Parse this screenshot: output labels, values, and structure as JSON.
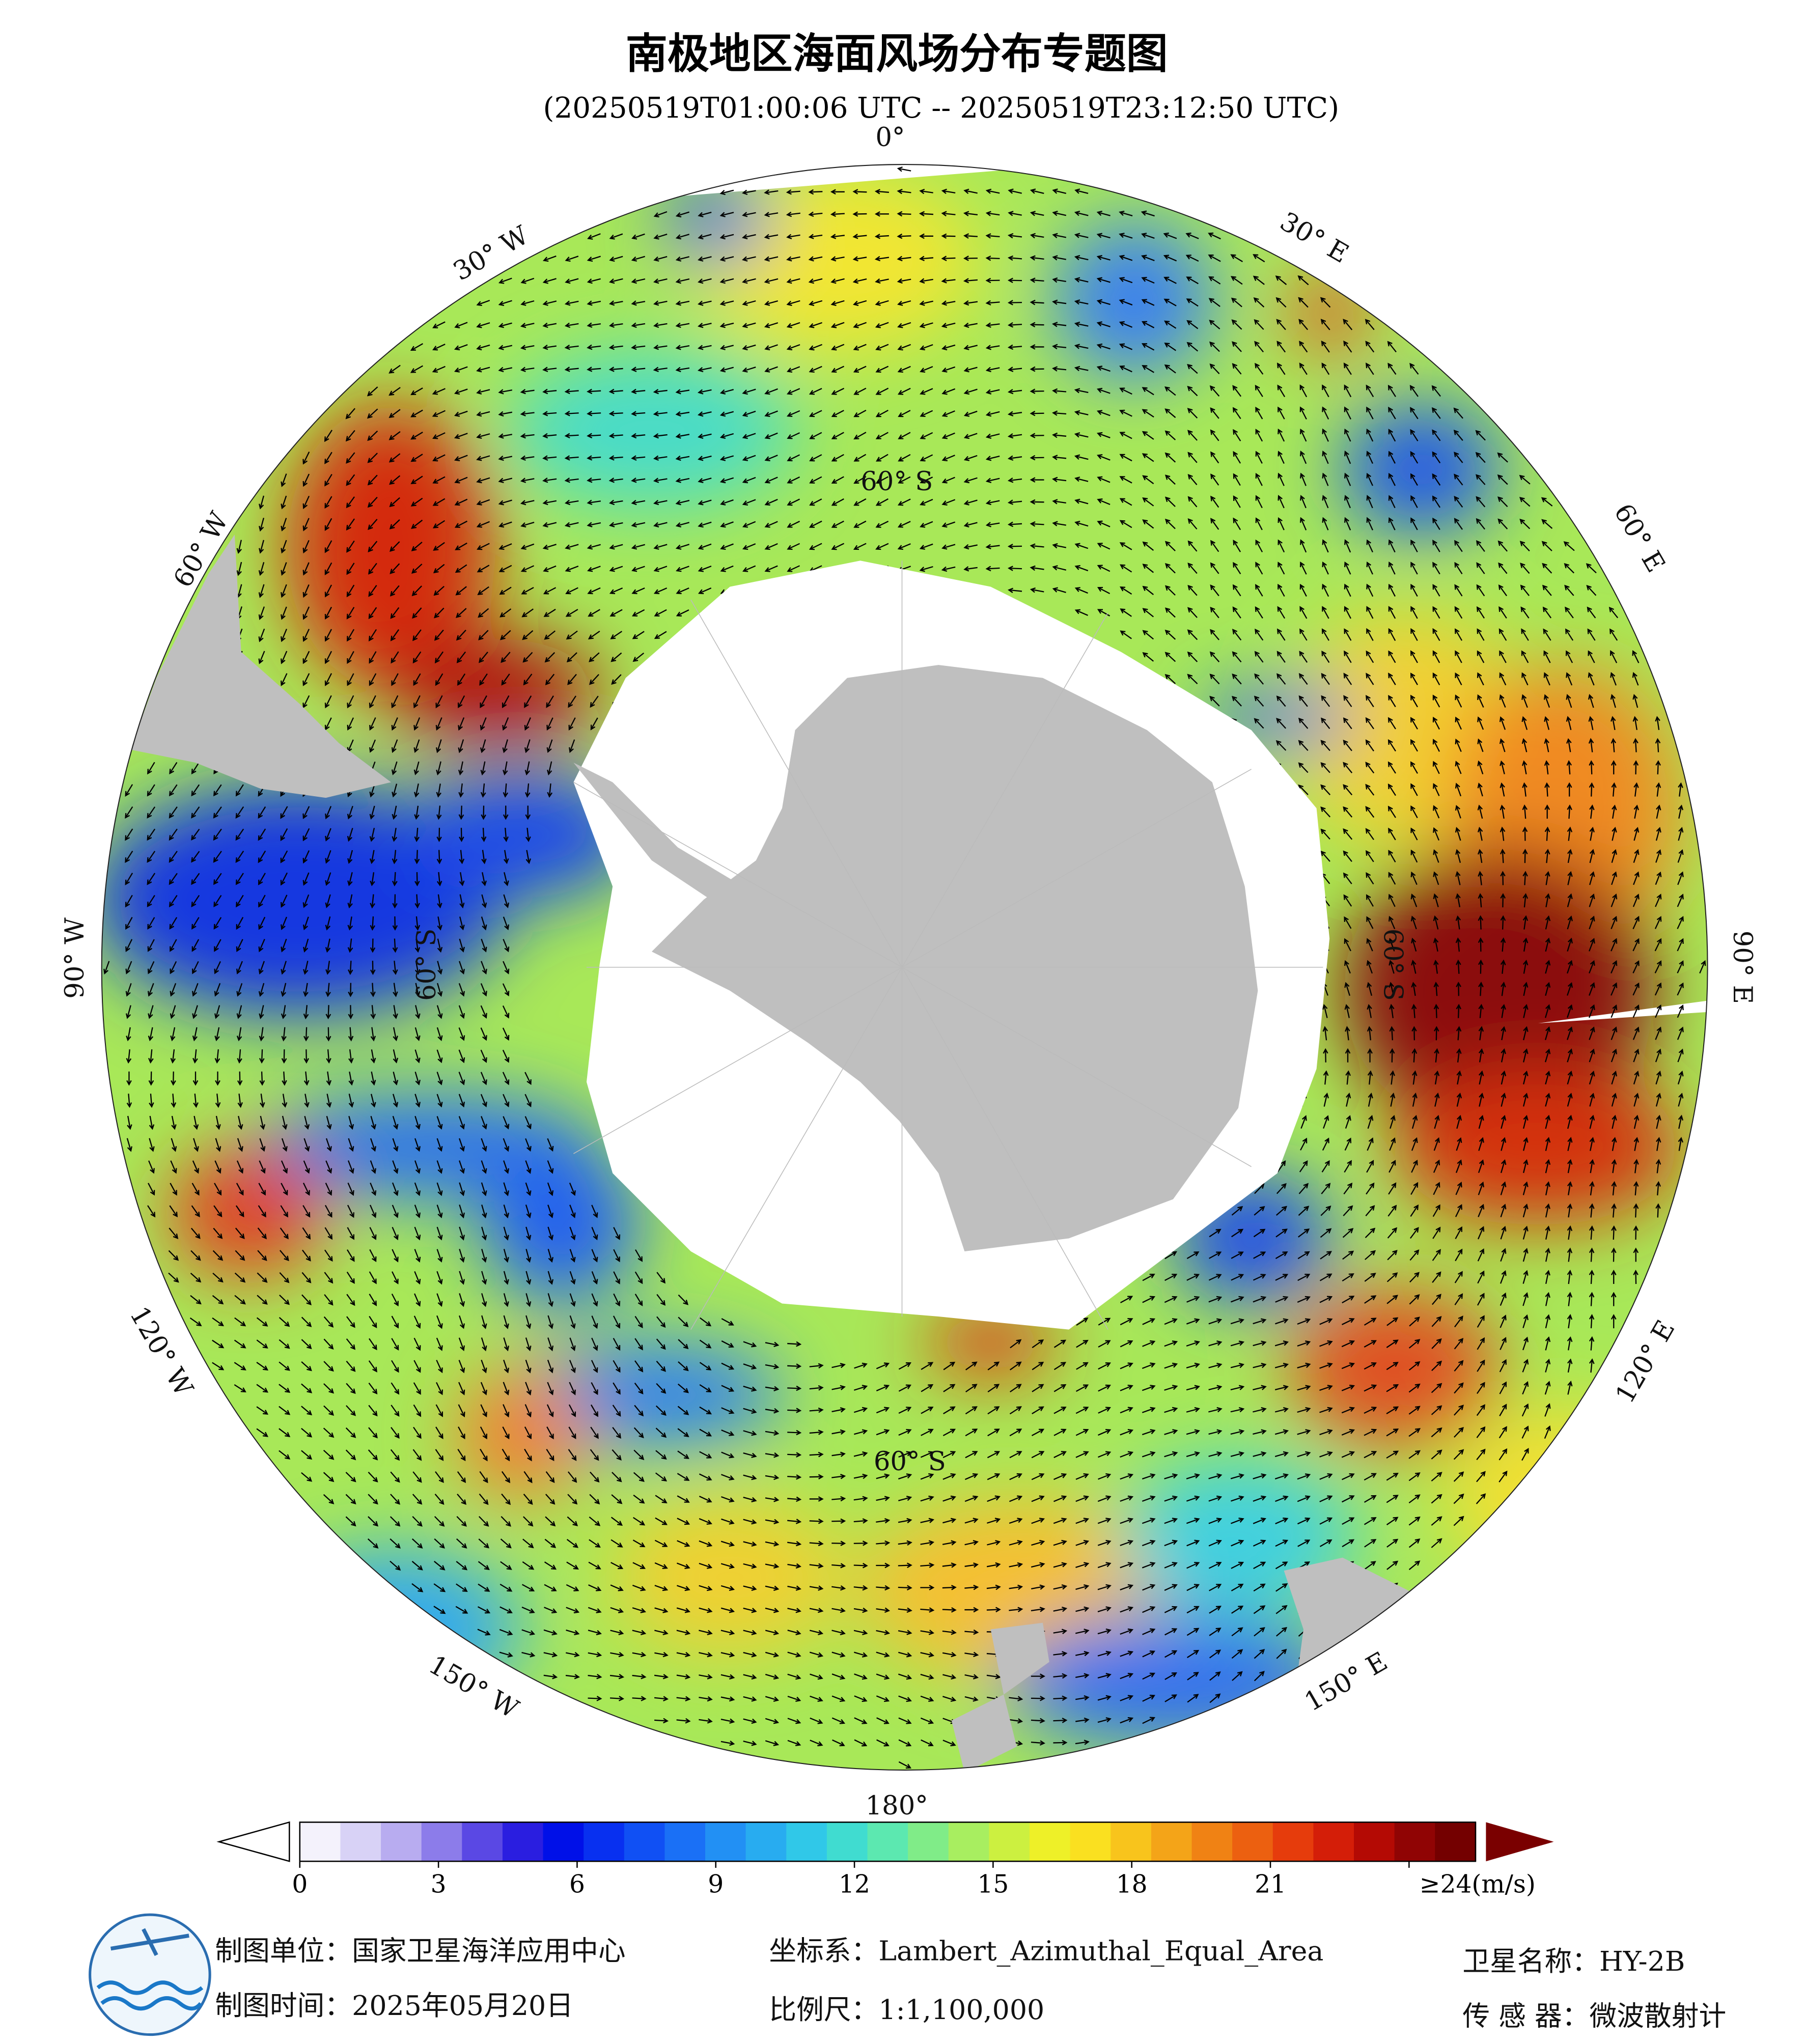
{
  "title": "南极地区海面风场分布专题图",
  "subtitle": "(20250519T01:00:06 UTC -- 20250519T23:12:50 UTC)",
  "map": {
    "longitude_labels": [
      "0°",
      "30° E",
      "60° E",
      "90° E",
      "120° E",
      "150° E",
      "180°",
      "150° W",
      "120° W",
      "90° W",
      "60° W",
      "30° W"
    ],
    "latitude_labels": [
      "60° S",
      "60° S",
      "60° S",
      "60° S"
    ]
  },
  "colorbar": {
    "range": [
      0,
      24
    ],
    "ticks": [
      0,
      3,
      6,
      9,
      12,
      15,
      18,
      21,
      {
        "value": 24,
        "label": "≥24(m/s)"
      }
    ],
    "colors": [
      "#f4f2fc",
      "#d8d2f6",
      "#b8acf0",
      "#8c7cea",
      "#5a48e4",
      "#2a1ee0",
      "#0010e8",
      "#0830f0",
      "#1050f4",
      "#1a70f6",
      "#2290f4",
      "#28acf0",
      "#30c8e8",
      "#40dcd0",
      "#5ce8b0",
      "#80ec88",
      "#a8ee60",
      "#ccf040",
      "#eef028",
      "#fae020",
      "#f8c41c",
      "#f4a418",
      "#f08214",
      "#ec6010",
      "#e63c0c",
      "#d41e08",
      "#b40a04",
      "#900404",
      "#740000"
    ],
    "under_color": "#ffffff",
    "over_color": "#7a0000"
  },
  "footer": {
    "producer": "制图单位：国家卫星海洋应用中心",
    "date": "制图时间：2025年05月20日",
    "projection": "坐标系：Lambert_Azimuthal_Equal_Area",
    "scale": "比例尺：1:1,100,000",
    "satellite": "卫星名称：HY-2B",
    "sensor": "传 感 器：微波散射计"
  }
}
